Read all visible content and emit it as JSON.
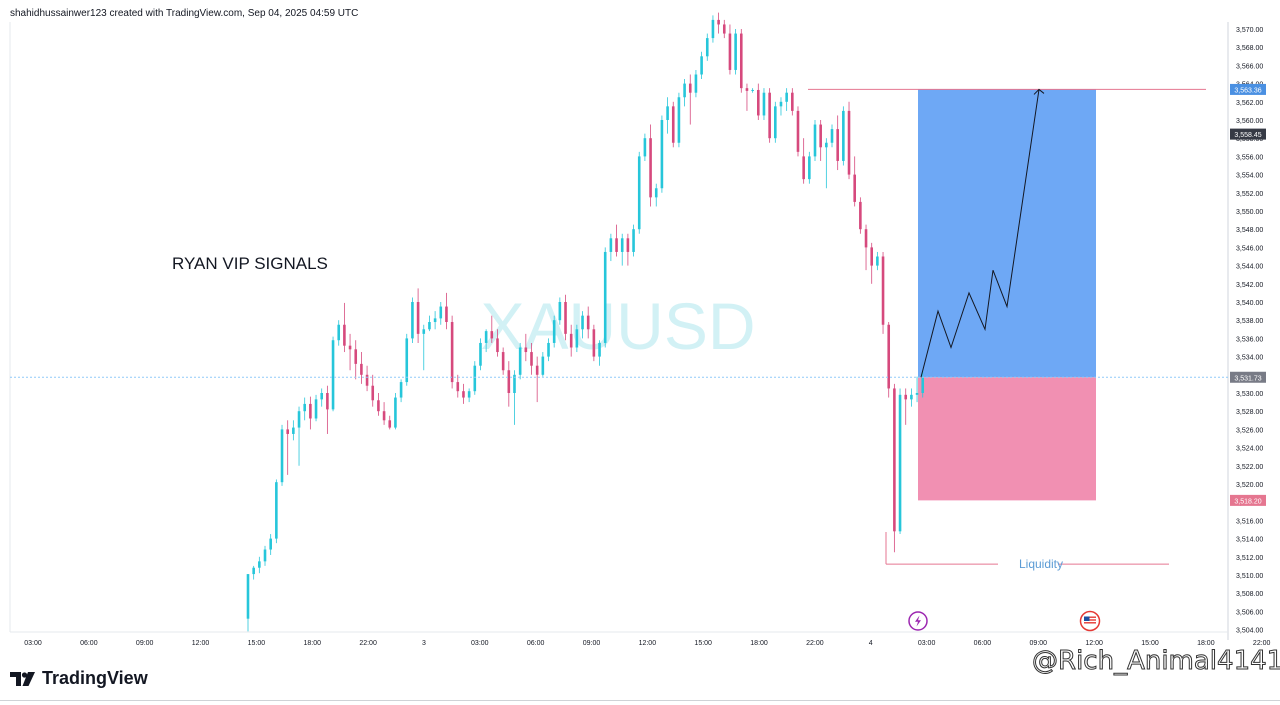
{
  "header": {
    "caption": "shahidhussainwer123 created with TradingView.com, Sep 04, 2025 04:59 UTC"
  },
  "footer": {
    "brand": "TradingView",
    "user_watermark": "@Rich_Animal4141"
  },
  "chart_data": {
    "type": "candlestick",
    "symbol_watermark": "XAUUSD",
    "annotation": "RYAN VIP SIGNALS",
    "liquidity_label": "Liquidity",
    "ylim": [
      3503,
      3572
    ],
    "y_ticks": [
      "3,570.00",
      "3,568.00",
      "3,566.00",
      "3,564.00",
      "3,562.00",
      "3,560.00",
      "3,558.00",
      "3,556.00",
      "3,554.00",
      "3,552.00",
      "3,550.00",
      "3,548.00",
      "3,546.00",
      "3,544.00",
      "3,542.00",
      "3,540.00",
      "3,538.00",
      "3,536.00",
      "3,534.00",
      "3,532.00",
      "3,530.00",
      "3,528.00",
      "3,526.00",
      "3,524.00",
      "3,522.00",
      "3,520.00",
      "3,518.00",
      "3,516.00",
      "3,514.00",
      "3,512.00",
      "3,510.00",
      "3,508.00",
      "3,506.00",
      "3,504.00"
    ],
    "x_ticks": [
      "03:00",
      "06:00",
      "09:00",
      "12:00",
      "15:00",
      "18:00",
      "22:00",
      "3",
      "03:00",
      "06:00",
      "09:00",
      "12:00",
      "15:00",
      "18:00",
      "22:00",
      "4",
      "03:00",
      "06:00",
      "09:00",
      "12:00",
      "15:00",
      "18:00",
      "22:00"
    ],
    "price_labels": [
      {
        "label": "3,563.36",
        "value": 3563.36,
        "color": "#4a90e2"
      },
      {
        "label": "3,558.45",
        "value": 3558.45,
        "color": "#363a45"
      },
      {
        "label": "3,531.73",
        "value": 3531.73,
        "color": "#787b86"
      },
      {
        "label": "3,518.20",
        "value": 3518.2,
        "color": "#e57690"
      }
    ],
    "position": {
      "entry": 3531.73,
      "target": 3563.36,
      "stop": 3518.2
    },
    "liquidity_level": 3511.2,
    "colors": {
      "up": "#26c6da",
      "down": "#d6497d",
      "profit": "#6ea8f5",
      "loss": "#f190b2"
    },
    "candles": [
      [
        3505.2,
        3510.1,
        3503.8,
        3510.1
      ],
      [
        3510.1,
        3511.0,
        3509.5,
        3510.8
      ],
      [
        3510.8,
        3512.0,
        3510.2,
        3511.5
      ],
      [
        3511.5,
        3513.2,
        3511.0,
        3512.8
      ],
      [
        3512.8,
        3514.5,
        3512.2,
        3514.0
      ],
      [
        3514.0,
        3520.5,
        3513.5,
        3520.2
      ],
      [
        3520.2,
        3526.5,
        3519.8,
        3526.0
      ],
      [
        3526.0,
        3527.0,
        3521.0,
        3525.5
      ],
      [
        3525.5,
        3527.0,
        3524.8,
        3526.2
      ],
      [
        3526.2,
        3528.5,
        3522.0,
        3528.0
      ],
      [
        3528.0,
        3529.5,
        3527.0,
        3528.8
      ],
      [
        3528.8,
        3529.6,
        3526.0,
        3527.2
      ],
      [
        3527.2,
        3529.8,
        3526.9,
        3529.3
      ],
      [
        3529.3,
        3530.5,
        3528.5,
        3530.0
      ],
      [
        3530.0,
        3530.8,
        3525.5,
        3528.2
      ],
      [
        3528.2,
        3536.2,
        3528.0,
        3535.8
      ],
      [
        3535.8,
        3538.0,
        3535.2,
        3537.5
      ],
      [
        3537.5,
        3539.9,
        3534.5,
        3535.2
      ],
      [
        3535.2,
        3536.5,
        3532.5,
        3534.8
      ],
      [
        3534.8,
        3535.8,
        3531.5,
        3533.2
      ],
      [
        3533.2,
        3534.5,
        3531.0,
        3532.0
      ],
      [
        3532.0,
        3533.0,
        3530.2,
        3530.8
      ],
      [
        3530.8,
        3532.0,
        3528.5,
        3529.2
      ],
      [
        3529.2,
        3530.0,
        3527.5,
        3528.0
      ],
      [
        3528.0,
        3529.0,
        3526.5,
        3527.0
      ],
      [
        3527.0,
        3527.5,
        3526.0,
        3526.2
      ],
      [
        3526.2,
        3530.0,
        3526.0,
        3529.5
      ],
      [
        3529.5,
        3531.5,
        3529.0,
        3531.2
      ],
      [
        3531.2,
        3536.5,
        3530.8,
        3536.0
      ],
      [
        3536.0,
        3540.5,
        3535.5,
        3540.0
      ],
      [
        3540.0,
        3541.5,
        3535.5,
        3536.5
      ],
      [
        3536.5,
        3537.5,
        3532.5,
        3537.0
      ],
      [
        3537.0,
        3538.5,
        3536.8,
        3537.8
      ],
      [
        3537.8,
        3539.0,
        3537.0,
        3538.2
      ],
      [
        3538.2,
        3540.0,
        3537.5,
        3539.5
      ],
      [
        3539.5,
        3541.0,
        3537.0,
        3537.8
      ],
      [
        3537.8,
        3538.5,
        3530.5,
        3531.2
      ],
      [
        3531.2,
        3532.0,
        3529.5,
        3530.2
      ],
      [
        3530.2,
        3531.0,
        3528.8,
        3529.5
      ],
      [
        3529.5,
        3530.5,
        3529.0,
        3530.2
      ],
      [
        3530.2,
        3533.5,
        3529.8,
        3533.0
      ],
      [
        3533.0,
        3536.0,
        3532.5,
        3535.5
      ],
      [
        3535.5,
        3537.0,
        3534.5,
        3536.8
      ],
      [
        3536.8,
        3538.5,
        3535.5,
        3536.0
      ],
      [
        3536.0,
        3537.0,
        3534.0,
        3534.5
      ],
      [
        3534.5,
        3535.0,
        3532.0,
        3532.5
      ],
      [
        3532.5,
        3533.5,
        3528.5,
        3530.0
      ],
      [
        3530.0,
        3532.5,
        3526.5,
        3532.0
      ],
      [
        3532.0,
        3535.5,
        3531.5,
        3535.0
      ],
      [
        3535.0,
        3536.5,
        3533.5,
        3534.5
      ],
      [
        3534.5,
        3535.5,
        3532.0,
        3533.0
      ],
      [
        3533.0,
        3534.0,
        3529.0,
        3532.0
      ],
      [
        3532.0,
        3534.5,
        3531.8,
        3534.0
      ],
      [
        3534.0,
        3536.0,
        3533.5,
        3535.5
      ],
      [
        3535.5,
        3538.5,
        3535.0,
        3538.0
      ],
      [
        3538.0,
        3540.5,
        3537.5,
        3540.0
      ],
      [
        3540.0,
        3540.8,
        3535.8,
        3536.5
      ],
      [
        3536.5,
        3537.5,
        3534.0,
        3535.0
      ],
      [
        3535.0,
        3537.5,
        3534.5,
        3537.0
      ],
      [
        3537.0,
        3539.0,
        3536.0,
        3538.5
      ],
      [
        3538.5,
        3539.5,
        3536.0,
        3537.0
      ],
      [
        3537.0,
        3537.5,
        3533.5,
        3534.0
      ],
      [
        3534.0,
        3535.8,
        3533.0,
        3535.5
      ],
      [
        3535.5,
        3546.0,
        3535.0,
        3545.5
      ],
      [
        3545.5,
        3547.5,
        3544.5,
        3547.0
      ],
      [
        3547.0,
        3548.5,
        3545.0,
        3545.5
      ],
      [
        3545.5,
        3547.5,
        3544.0,
        3547.0
      ],
      [
        3547.0,
        3547.5,
        3544.0,
        3545.5
      ],
      [
        3545.5,
        3548.5,
        3545.0,
        3548.0
      ],
      [
        3548.0,
        3556.5,
        3547.5,
        3556.0
      ],
      [
        3556.0,
        3558.5,
        3555.5,
        3558.0
      ],
      [
        3558.0,
        3559.5,
        3550.5,
        3551.5
      ],
      [
        3551.5,
        3553.0,
        3550.5,
        3552.5
      ],
      [
        3552.5,
        3560.5,
        3552.0,
        3560.0
      ],
      [
        3560.0,
        3562.5,
        3558.5,
        3561.5
      ],
      [
        3561.5,
        3562.0,
        3557.0,
        3557.5
      ],
      [
        3557.5,
        3563.0,
        3557.0,
        3562.5
      ],
      [
        3562.5,
        3564.5,
        3561.5,
        3564.0
      ],
      [
        3564.0,
        3565.0,
        3559.5,
        3563.0
      ],
      [
        3563.0,
        3565.5,
        3562.5,
        3565.0
      ],
      [
        3565.0,
        3567.5,
        3564.5,
        3567.0
      ],
      [
        3567.0,
        3569.5,
        3566.5,
        3569.0
      ],
      [
        3569.0,
        3571.5,
        3568.5,
        3571.0
      ],
      [
        3571.0,
        3571.8,
        3569.5,
        3570.5
      ],
      [
        3570.5,
        3571.0,
        3569.0,
        3569.5
      ],
      [
        3569.5,
        3570.5,
        3565.0,
        3565.5
      ],
      [
        3565.5,
        3570.0,
        3565.0,
        3569.5
      ],
      [
        3569.5,
        3570.0,
        3563.0,
        3563.5
      ],
      [
        3563.5,
        3564.0,
        3561.0,
        3563.2
      ],
      [
        3563.2,
        3563.5,
        3563.0,
        3563.3
      ],
      [
        3563.3,
        3564.0,
        3560.0,
        3560.5
      ],
      [
        3560.5,
        3563.5,
        3560.0,
        3563.0
      ],
      [
        3563.0,
        3563.5,
        3557.5,
        3558.0
      ],
      [
        3558.0,
        3562.0,
        3557.5,
        3561.5
      ],
      [
        3561.5,
        3562.5,
        3560.5,
        3562.0
      ],
      [
        3562.0,
        3563.5,
        3561.0,
        3563.0
      ],
      [
        3563.0,
        3563.5,
        3560.5,
        3561.0
      ],
      [
        3561.0,
        3561.5,
        3556.0,
        3556.5
      ],
      [
        3556.0,
        3558.0,
        3553.0,
        3553.5
      ],
      [
        3553.5,
        3556.5,
        3553.0,
        3556.0
      ],
      [
        3556.0,
        3560.0,
        3555.5,
        3559.5
      ],
      [
        3559.5,
        3560.0,
        3555.5,
        3557.0
      ],
      [
        3557.0,
        3558.0,
        3552.5,
        3557.5
      ],
      [
        3557.5,
        3559.5,
        3557.0,
        3559.0
      ],
      [
        3559.0,
        3560.5,
        3554.5,
        3555.5
      ],
      [
        3555.5,
        3561.5,
        3555.0,
        3561.0
      ],
      [
        3561.0,
        3562.0,
        3553.5,
        3554.0
      ],
      [
        3554.0,
        3556.0,
        3550.5,
        3551.0
      ],
      [
        3551.0,
        3551.5,
        3547.5,
        3548.0
      ],
      [
        3548.0,
        3548.5,
        3543.5,
        3546.0
      ],
      [
        3546.0,
        3546.5,
        3542.0,
        3544.0
      ],
      [
        3544.0,
        3545.5,
        3543.5,
        3545.0
      ],
      [
        3545.0,
        3545.5,
        3536.5,
        3537.5
      ],
      [
        3537.5,
        3537.8,
        3529.5,
        3530.5
      ],
      [
        3530.5,
        3531.0,
        3512.5,
        3514.8
      ],
      [
        3514.8,
        3530.5,
        3514.5,
        3529.8
      ],
      [
        3529.8,
        3530.5,
        3526.5,
        3529.3
      ],
      [
        3529.3,
        3530.5,
        3528.5,
        3529.8
      ],
      [
        3529.8,
        3531.8,
        3529.0,
        3530.0
      ],
      [
        3530.0,
        3532.5,
        3529.5,
        3531.73
      ]
    ],
    "projection": [
      3531.73,
      3539.0,
      3535.0,
      3541.0,
      3537.0,
      3543.5,
      3539.5,
      3563.36
    ]
  }
}
